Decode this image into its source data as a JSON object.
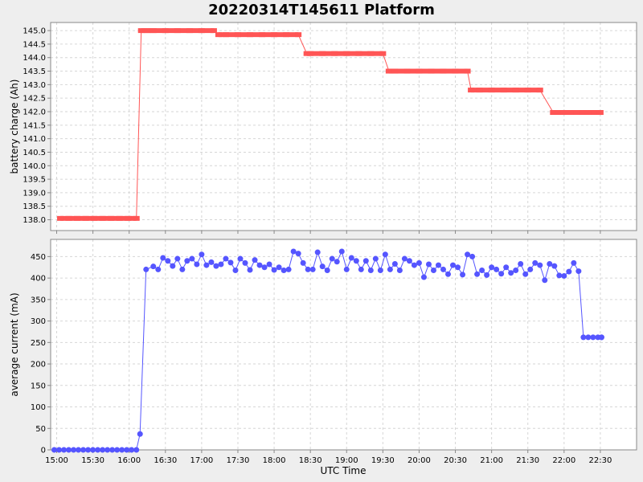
{
  "title": "20220314T145611 Platform",
  "chart_data": {
    "type": "line",
    "title": "20220314T145611 Platform",
    "xlabel": "UTC Time",
    "x_ticks": [
      "15:00",
      "15:30",
      "16:00",
      "16:30",
      "17:00",
      "17:30",
      "18:00",
      "18:30",
      "19:00",
      "19:30",
      "20:00",
      "20:30",
      "21:00",
      "21:30",
      "22:00",
      "22:30"
    ],
    "xlim": [
      "14:55",
      "23:00"
    ],
    "grid": true,
    "panels": [
      {
        "ylabel": "battery charge (Ah)",
        "ylim": [
          137.6,
          145.3
        ],
        "y_ticks": [
          138.0,
          138.5,
          139.0,
          139.5,
          140.0,
          140.5,
          141.0,
          141.5,
          142.0,
          142.5,
          143.0,
          143.5,
          144.0,
          144.5,
          145.0
        ],
        "y_tick_labels": [
          "138.0",
          "138.5",
          "139.0",
          "139.5",
          "140.0",
          "140.5",
          "141.0",
          "141.5",
          "142.0",
          "142.5",
          "143.0",
          "143.5",
          "144.0",
          "144.5",
          "145.0"
        ],
        "color": "#ff5555",
        "series": [
          {
            "style": "thick-step",
            "x": [
              "15:03",
              "15:10",
              "15:17",
              "15:24",
              "15:31",
              "15:38",
              "15:45",
              "15:52",
              "15:59",
              "16:06",
              "16:10",
              "16:15",
              "16:20",
              "16:30",
              "16:40",
              "16:50",
              "17:00",
              "17:10",
              "17:14",
              "17:20",
              "17:30",
              "17:40",
              "17:50",
              "18:00",
              "18:10",
              "18:20",
              "18:27",
              "18:30",
              "18:40",
              "18:50",
              "19:00",
              "19:10",
              "19:20",
              "19:30",
              "19:35",
              "19:40",
              "19:50",
              "20:00",
              "20:10",
              "20:20",
              "20:30",
              "20:40",
              "20:43",
              "20:50",
              "21:00",
              "21:10",
              "21:20",
              "21:30",
              "21:40",
              "21:51",
              "21:55",
              "22:00",
              "22:05",
              "22:15",
              "22:20",
              "22:25",
              "22:30"
            ],
            "y": [
              138.05,
              138.05,
              138.05,
              138.05,
              138.05,
              138.05,
              138.05,
              138.05,
              138.05,
              138.05,
              145.0,
              145.0,
              145.0,
              145.0,
              145.0,
              145.0,
              145.0,
              145.0,
              144.85,
              144.85,
              144.85,
              144.85,
              144.85,
              144.85,
              144.85,
              144.85,
              144.15,
              144.15,
              144.15,
              144.15,
              144.15,
              144.15,
              144.15,
              144.15,
              143.5,
              143.5,
              143.5,
              143.5,
              143.5,
              143.5,
              143.5,
              143.5,
              142.8,
              142.8,
              142.8,
              142.8,
              142.8,
              142.8,
              142.8,
              141.97,
              141.97,
              141.97,
              141.97,
              141.97,
              141.97,
              141.97,
              141.97
            ]
          }
        ]
      },
      {
        "ylabel": "average current (mA)",
        "ylim": [
          0,
          490
        ],
        "y_ticks": [
          0,
          50,
          100,
          150,
          200,
          250,
          300,
          350,
          400,
          450
        ],
        "y_tick_labels": [
          "0",
          "50",
          "100",
          "150",
          "200",
          "250",
          "300",
          "350",
          "400",
          "450"
        ],
        "color": "#5555ff",
        "series": [
          {
            "style": "line-markers",
            "x": [
              "14:58",
              "15:02",
              "15:06",
              "15:10",
              "15:14",
              "15:18",
              "15:22",
              "15:26",
              "15:30",
              "15:34",
              "15:38",
              "15:42",
              "15:46",
              "15:50",
              "15:54",
              "15:58",
              "16:02",
              "16:06",
              "16:09",
              "16:14",
              "16:20",
              "16:24",
              "16:28",
              "16:32",
              "16:36",
              "16:40",
              "16:44",
              "16:48",
              "16:52",
              "16:56",
              "17:00",
              "17:04",
              "17:08",
              "17:12",
              "17:16",
              "17:20",
              "17:24",
              "17:28",
              "17:32",
              "17:36",
              "17:40",
              "17:44",
              "17:48",
              "17:52",
              "17:56",
              "18:00",
              "18:04",
              "18:08",
              "18:12",
              "18:16",
              "18:20",
              "18:24",
              "18:28",
              "18:32",
              "18:36",
              "18:40",
              "18:44",
              "18:48",
              "18:52",
              "18:56",
              "19:00",
              "19:04",
              "19:08",
              "19:12",
              "19:16",
              "19:20",
              "19:24",
              "19:28",
              "19:32",
              "19:36",
              "19:40",
              "19:44",
              "19:48",
              "19:52",
              "19:56",
              "20:00",
              "20:04",
              "20:08",
              "20:12",
              "20:16",
              "20:20",
              "20:24",
              "20:28",
              "20:32",
              "20:36",
              "20:40",
              "20:44",
              "20:48",
              "20:52",
              "20:56",
              "21:00",
              "21:04",
              "21:08",
              "21:12",
              "21:16",
              "21:20",
              "21:24",
              "21:28",
              "21:32",
              "21:36",
              "21:40",
              "21:44",
              "21:48",
              "21:52",
              "21:56",
              "22:00",
              "22:04",
              "22:08",
              "22:12",
              "22:16",
              "22:20",
              "22:24",
              "22:28",
              "22:31",
              "22:31"
            ],
            "y": [
              0,
              0,
              0,
              0,
              0,
              0,
              0,
              0,
              0,
              0,
              0,
              0,
              0,
              0,
              0,
              0,
              0,
              0,
              37,
              420,
              427,
              420,
              447,
              440,
              428,
              445,
              420,
              440,
              445,
              432,
              455,
              430,
              437,
              428,
              432,
              445,
              436,
              418,
              445,
              435,
              419,
              442,
              430,
              425,
              432,
              419,
              425,
              418,
              420,
              462,
              457,
              435,
              420,
              420,
              460,
              427,
              418,
              445,
              438,
              462,
              420,
              447,
              440,
              420,
              440,
              418,
              445,
              418,
              455,
              420,
              433,
              418,
              445,
              440,
              430,
              435,
              402,
              432,
              418,
              430,
              420,
              409,
              430,
              425,
              408,
              455,
              450,
              409,
              418,
              407,
              425,
              420,
              410,
              425,
              412,
              418,
              433,
              409,
              420,
              435,
              430,
              395,
              433,
              428,
              406,
              405,
              415,
              435,
              416,
              262,
              262,
              262,
              262,
              262,
              262
            ]
          }
        ]
      }
    ]
  }
}
